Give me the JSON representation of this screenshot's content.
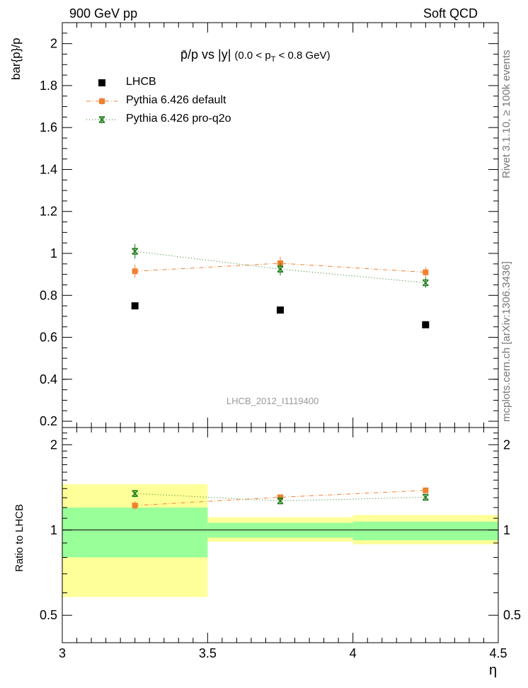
{
  "header": {
    "left": "900 GeV pp",
    "right": "Soft QCD"
  },
  "side_labels": {
    "rivet": "Rivet 3.1.10, ≥ 100k events",
    "mcplots": "mcplots.cern.ch [arXiv:1306.3436]"
  },
  "plot_title": {
    "main": "p̄/p vs |y|",
    "range_prefix": "(0.0 < p",
    "range_sub": "T",
    "range_suffix": " < 0.8 GeV)"
  },
  "watermark": "LHCB_2012_I1119400",
  "legend": {
    "items": [
      {
        "label": "LHCB",
        "color": "#000000"
      },
      {
        "label": "Pythia 6.426 default",
        "color": "#f08030"
      },
      {
        "label": "Pythia 6.426 pro-q2o",
        "color": "#1a7a1a"
      }
    ]
  },
  "chart_data": [
    {
      "type": "scatter",
      "title": "p̄/p vs |y| (0.0 < pT < 0.8 GeV)",
      "xlabel": "η",
      "ylabel": "bar{p}/p",
      "xlim": [
        3.0,
        4.5
      ],
      "ylim": [
        0.17,
        2.1
      ],
      "yticks": [
        0.2,
        0.4,
        0.6,
        0.8,
        1.0,
        1.2,
        1.4,
        1.6,
        1.8,
        2.0
      ],
      "ytick_labels": [
        "0.2",
        "0.4",
        "0.6",
        "0.8",
        "1",
        "1.2",
        "1.4",
        "1.6",
        "1.8",
        "2"
      ],
      "series": [
        {
          "name": "LHCB",
          "color": "#000000",
          "marker": "square",
          "x": [
            3.25,
            3.75,
            4.25
          ],
          "y": [
            0.75,
            0.73,
            0.66
          ],
          "yerr": [
            0.0,
            0.0,
            0.0
          ]
        },
        {
          "name": "Pythia 6.426 default",
          "color": "#f08030",
          "marker": "square-small",
          "line": "dashdot",
          "x": [
            3.25,
            3.75,
            4.25
          ],
          "y": [
            0.915,
            0.953,
            0.91
          ],
          "yerr": [
            0.03,
            0.03,
            0.025
          ]
        },
        {
          "name": "Pythia 6.426 pro-q2o",
          "color": "#1a7a1a",
          "marker": "star",
          "line": "dotted",
          "x": [
            3.25,
            3.75,
            4.25
          ],
          "y": [
            1.01,
            0.925,
            0.86
          ],
          "yerr": [
            0.035,
            0.03,
            0.025
          ]
        }
      ]
    },
    {
      "type": "scatter",
      "title": "Ratio to LHCB",
      "xlabel": "η",
      "ylabel": "Ratio to LHCB",
      "xlim": [
        3.0,
        4.5
      ],
      "ylim": [
        0.4,
        2.3
      ],
      "yscale": "log",
      "yticks": [
        0.5,
        1,
        2
      ],
      "ytick_labels": [
        "0.5",
        "1",
        "2"
      ],
      "xticks": [
        3.0,
        3.5,
        4.0,
        4.5
      ],
      "xtick_labels": [
        "3",
        "3.5",
        "4",
        "4.5"
      ],
      "bands": [
        {
          "x0": 3.0,
          "x1": 3.5,
          "yellow": [
            0.58,
            1.45
          ],
          "green": [
            0.8,
            1.2
          ]
        },
        {
          "x0": 3.5,
          "x1": 4.0,
          "yellow": [
            0.91,
            1.11
          ],
          "green": [
            0.94,
            1.06
          ]
        },
        {
          "x0": 4.0,
          "x1": 4.5,
          "yellow": [
            0.89,
            1.13
          ],
          "green": [
            0.92,
            1.07
          ]
        }
      ],
      "series": [
        {
          "name": "Pythia 6.426 default",
          "color": "#f08030",
          "marker": "square-small",
          "line": "dashdot",
          "x": [
            3.25,
            3.75,
            4.25
          ],
          "y": [
            1.22,
            1.305,
            1.38
          ],
          "yerr": [
            0.04,
            0.02,
            0.02
          ]
        },
        {
          "name": "Pythia 6.426 pro-q2o",
          "color": "#1a7a1a",
          "marker": "star",
          "line": "dotted",
          "x": [
            3.25,
            3.75,
            4.25
          ],
          "y": [
            1.345,
            1.267,
            1.305
          ],
          "yerr": [
            0.04,
            0.03,
            0.03
          ]
        }
      ]
    }
  ]
}
